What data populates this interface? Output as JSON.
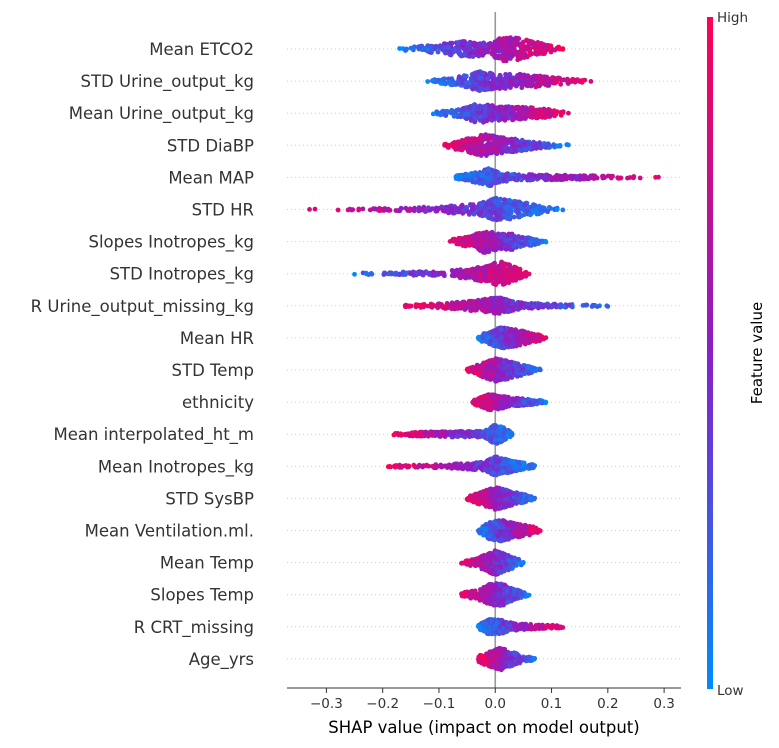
{
  "chart_data": {
    "type": "scatter",
    "subtype": "shap-beeswarm",
    "xlabel": "SHAP value (impact on model output)",
    "xlim": [
      -0.37,
      0.33
    ],
    "xticks": [
      -0.3,
      -0.2,
      -0.1,
      0.0,
      0.1,
      0.2,
      0.3
    ],
    "xtick_labels": [
      "−0.3",
      "−0.2",
      "−0.1",
      "0.0",
      "0.1",
      "0.2",
      "0.3"
    ],
    "colorbar": {
      "title": "Feature value",
      "high_label": "High",
      "low_label": "Low",
      "high_color": "#ff0052",
      "mid_color": "#8a1ec8",
      "low_color": "#008bfb"
    },
    "zero_line_color": "#999999",
    "row_guide_color": "#cccccc",
    "features": [
      {
        "name": "Mean ETCO2",
        "min": -0.17,
        "max": 0.12,
        "high_side": "right",
        "profile": [
          [
            -0.17,
            0.05
          ],
          [
            -0.1,
            0.35
          ],
          [
            -0.05,
            0.6
          ],
          [
            -0.01,
            0.5
          ],
          [
            0.02,
            1.0
          ],
          [
            0.06,
            0.65
          ],
          [
            0.1,
            0.25
          ],
          [
            0.12,
            0.05
          ]
        ]
      },
      {
        "name": "STD Urine_output_kg",
        "min": -0.12,
        "max": 0.17,
        "high_side": "right",
        "profile": [
          [
            -0.12,
            0.05
          ],
          [
            -0.06,
            0.35
          ],
          [
            -0.03,
            0.75
          ],
          [
            0.0,
            0.55
          ],
          [
            0.03,
            0.55
          ],
          [
            0.08,
            0.4
          ],
          [
            0.13,
            0.15
          ],
          [
            0.17,
            0.03
          ]
        ]
      },
      {
        "name": "Mean Urine_output_kg",
        "min": -0.11,
        "max": 0.13,
        "high_side": "right",
        "profile": [
          [
            -0.11,
            0.05
          ],
          [
            -0.06,
            0.3
          ],
          [
            -0.03,
            0.75
          ],
          [
            0.0,
            0.55
          ],
          [
            0.04,
            0.5
          ],
          [
            0.09,
            0.3
          ],
          [
            0.13,
            0.05
          ]
        ]
      },
      {
        "name": "STD DiaBP",
        "min": -0.09,
        "max": 0.13,
        "high_side": "left",
        "profile": [
          [
            -0.09,
            0.1
          ],
          [
            -0.05,
            0.5
          ],
          [
            -0.02,
            0.85
          ],
          [
            0.01,
            0.6
          ],
          [
            0.04,
            0.45
          ],
          [
            0.08,
            0.2
          ],
          [
            0.13,
            0.03
          ]
        ]
      },
      {
        "name": "Mean MAP",
        "min": -0.07,
        "max": 0.29,
        "high_side": "right",
        "profile": [
          [
            -0.07,
            0.1
          ],
          [
            -0.03,
            0.4
          ],
          [
            -0.01,
            0.7
          ],
          [
            0.01,
            0.3
          ],
          [
            0.05,
            0.2
          ],
          [
            0.12,
            0.15
          ],
          [
            0.2,
            0.08
          ],
          [
            0.25,
            0.03
          ],
          [
            0.29,
            0.02
          ]
        ]
      },
      {
        "name": "STD HR",
        "min": -0.33,
        "max": 0.12,
        "high_side": "left",
        "profile": [
          [
            -0.33,
            0.02
          ],
          [
            -0.25,
            0.03
          ],
          [
            -0.15,
            0.1
          ],
          [
            -0.08,
            0.25
          ],
          [
            -0.03,
            0.4
          ],
          [
            0.0,
            0.9
          ],
          [
            0.03,
            0.7
          ],
          [
            0.07,
            0.35
          ],
          [
            0.12,
            0.05
          ]
        ]
      },
      {
        "name": "Slopes Inotropes_kg",
        "min": -0.08,
        "max": 0.09,
        "high_side": "left",
        "profile": [
          [
            -0.08,
            0.1
          ],
          [
            -0.04,
            0.45
          ],
          [
            -0.02,
            0.85
          ],
          [
            0.01,
            0.55
          ],
          [
            0.03,
            0.6
          ],
          [
            0.06,
            0.3
          ],
          [
            0.09,
            0.05
          ]
        ]
      },
      {
        "name": "STD Inotropes_kg",
        "min": -0.25,
        "max": 0.06,
        "high_side": "right",
        "profile": [
          [
            -0.25,
            0.03
          ],
          [
            -0.18,
            0.08
          ],
          [
            -0.1,
            0.15
          ],
          [
            -0.05,
            0.35
          ],
          [
            -0.02,
            0.6
          ],
          [
            0.01,
            0.95
          ],
          [
            0.03,
            0.6
          ],
          [
            0.06,
            0.08
          ]
        ]
      },
      {
        "name": "R Urine_output_missing_kg",
        "min": -0.16,
        "max": 0.2,
        "high_side": "left",
        "profile": [
          [
            -0.16,
            0.03
          ],
          [
            -0.1,
            0.15
          ],
          [
            -0.04,
            0.35
          ],
          [
            -0.01,
            0.55
          ],
          [
            0.01,
            0.6
          ],
          [
            0.05,
            0.2
          ],
          [
            0.12,
            0.08
          ],
          [
            0.2,
            0.02
          ]
        ]
      },
      {
        "name": "Mean HR",
        "min": -0.03,
        "max": 0.09,
        "high_side": "right",
        "profile": [
          [
            -0.03,
            0.15
          ],
          [
            -0.01,
            0.5
          ],
          [
            0.01,
            0.8
          ],
          [
            0.04,
            0.6
          ],
          [
            0.07,
            0.3
          ],
          [
            0.09,
            0.08
          ]
        ]
      },
      {
        "name": "STD Temp",
        "min": -0.05,
        "max": 0.08,
        "high_side": "left",
        "profile": [
          [
            -0.05,
            0.1
          ],
          [
            -0.02,
            0.55
          ],
          [
            0.0,
            0.9
          ],
          [
            0.02,
            0.7
          ],
          [
            0.05,
            0.35
          ],
          [
            0.08,
            0.05
          ]
        ]
      },
      {
        "name": "ethnicity",
        "min": -0.04,
        "max": 0.09,
        "high_side": "left",
        "profile": [
          [
            -0.04,
            0.1
          ],
          [
            -0.01,
            0.6
          ],
          [
            0.01,
            0.5
          ],
          [
            0.03,
            0.3
          ],
          [
            0.06,
            0.2
          ],
          [
            0.09,
            0.05
          ]
        ]
      },
      {
        "name": "Mean interpolated_ht_m",
        "min": -0.18,
        "max": 0.03,
        "high_side": "left",
        "profile": [
          [
            -0.18,
            0.03
          ],
          [
            -0.15,
            0.1
          ],
          [
            -0.1,
            0.18
          ],
          [
            -0.05,
            0.2
          ],
          [
            -0.02,
            0.2
          ],
          [
            0.0,
            0.75
          ],
          [
            0.02,
            0.4
          ],
          [
            0.03,
            0.05
          ]
        ]
      },
      {
        "name": "Mean Inotropes_kg",
        "min": -0.19,
        "max": 0.07,
        "high_side": "left",
        "profile": [
          [
            -0.19,
            0.05
          ],
          [
            -0.16,
            0.05
          ],
          [
            -0.1,
            0.1
          ],
          [
            -0.05,
            0.2
          ],
          [
            -0.02,
            0.3
          ],
          [
            0.0,
            0.75
          ],
          [
            0.03,
            0.4
          ],
          [
            0.07,
            0.08
          ]
        ]
      },
      {
        "name": "STD SysBP",
        "min": -0.05,
        "max": 0.07,
        "high_side": "left",
        "profile": [
          [
            -0.05,
            0.1
          ],
          [
            -0.02,
            0.55
          ],
          [
            0.0,
            0.85
          ],
          [
            0.02,
            0.65
          ],
          [
            0.05,
            0.3
          ],
          [
            0.07,
            0.05
          ]
        ]
      },
      {
        "name": "Mean Ventilation.ml.",
        "min": -0.03,
        "max": 0.08,
        "high_side": "right",
        "profile": [
          [
            -0.03,
            0.15
          ],
          [
            -0.01,
            0.65
          ],
          [
            0.01,
            0.8
          ],
          [
            0.04,
            0.5
          ],
          [
            0.07,
            0.25
          ],
          [
            0.08,
            0.05
          ]
        ]
      },
      {
        "name": "Mean Temp",
        "min": -0.06,
        "max": 0.05,
        "high_side": "left",
        "profile": [
          [
            -0.06,
            0.05
          ],
          [
            -0.03,
            0.35
          ],
          [
            0.0,
            0.95
          ],
          [
            0.02,
            0.6
          ],
          [
            0.05,
            0.08
          ]
        ]
      },
      {
        "name": "Slopes Temp",
        "min": -0.06,
        "max": 0.06,
        "high_side": "left",
        "profile": [
          [
            -0.06,
            0.1
          ],
          [
            -0.03,
            0.35
          ],
          [
            -0.01,
            0.8
          ],
          [
            0.01,
            0.9
          ],
          [
            0.03,
            0.45
          ],
          [
            0.06,
            0.05
          ]
        ]
      },
      {
        "name": "R CRT_missing",
        "min": -0.03,
        "max": 0.12,
        "high_side": "right",
        "profile": [
          [
            -0.03,
            0.15
          ],
          [
            -0.01,
            0.6
          ],
          [
            0.01,
            0.5
          ],
          [
            0.04,
            0.2
          ],
          [
            0.08,
            0.12
          ],
          [
            0.12,
            0.05
          ]
        ]
      },
      {
        "name": "Age_yrs",
        "min": -0.03,
        "max": 0.07,
        "high_side": "left",
        "profile": [
          [
            -0.03,
            0.25
          ],
          [
            -0.01,
            0.55
          ],
          [
            0.01,
            0.85
          ],
          [
            0.03,
            0.5
          ],
          [
            0.05,
            0.2
          ],
          [
            0.07,
            0.05
          ]
        ]
      }
    ]
  }
}
